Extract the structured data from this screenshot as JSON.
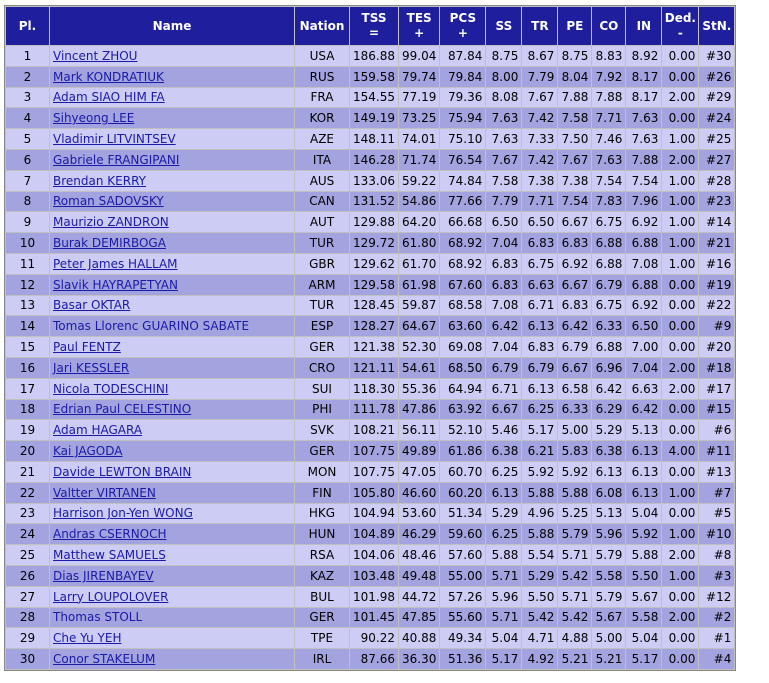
{
  "table": {
    "headers": {
      "pl": "Pl.",
      "name": "Name",
      "nation": "Nation",
      "tss": "TSS",
      "tss_sub": "=",
      "tes": "TES",
      "tes_sub": "+",
      "pcs": "PCS",
      "pcs_sub": "+",
      "ss": "SS",
      "tr": "TR",
      "pe": "PE",
      "co": "CO",
      "in": "IN",
      "ded": "Ded.",
      "ded_sub": "-",
      "stn": "StN."
    },
    "rows": [
      {
        "pl": "1",
        "name": "Vincent ZHOU",
        "nation": "USA",
        "tss": "186.88",
        "tes": "99.04",
        "pcs": "87.84",
        "ss": "8.75",
        "tr": "8.67",
        "pe": "8.75",
        "co": "8.83",
        "in": "8.92",
        "ded": "0.00",
        "stn": "#30"
      },
      {
        "pl": "2",
        "name": "Mark KONDRATIUK",
        "nation": "RUS",
        "tss": "159.58",
        "tes": "79.74",
        "pcs": "79.84",
        "ss": "8.00",
        "tr": "7.79",
        "pe": "8.04",
        "co": "7.92",
        "in": "8.17",
        "ded": "0.00",
        "stn": "#26"
      },
      {
        "pl": "3",
        "name": "Adam SIAO HIM FA",
        "nation": "FRA",
        "tss": "154.55",
        "tes": "77.19",
        "pcs": "79.36",
        "ss": "8.08",
        "tr": "7.67",
        "pe": "7.88",
        "co": "7.88",
        "in": "8.17",
        "ded": "2.00",
        "stn": "#29"
      },
      {
        "pl": "4",
        "name": "Sihyeong LEE",
        "nation": "KOR",
        "tss": "149.19",
        "tes": "73.25",
        "pcs": "75.94",
        "ss": "7.63",
        "tr": "7.42",
        "pe": "7.58",
        "co": "7.71",
        "in": "7.63",
        "ded": "0.00",
        "stn": "#24"
      },
      {
        "pl": "5",
        "name": "Vladimir LITVINTSEV",
        "nation": "AZE",
        "tss": "148.11",
        "tes": "74.01",
        "pcs": "75.10",
        "ss": "7.63",
        "tr": "7.33",
        "pe": "7.50",
        "co": "7.46",
        "in": "7.63",
        "ded": "1.00",
        "stn": "#25"
      },
      {
        "pl": "6",
        "name": "Gabriele FRANGIPANI",
        "nation": "ITA",
        "tss": "146.28",
        "tes": "71.74",
        "pcs": "76.54",
        "ss": "7.67",
        "tr": "7.42",
        "pe": "7.67",
        "co": "7.63",
        "in": "7.88",
        "ded": "2.00",
        "stn": "#27"
      },
      {
        "pl": "7",
        "name": "Brendan KERRY",
        "nation": "AUS",
        "tss": "133.06",
        "tes": "59.22",
        "pcs": "74.84",
        "ss": "7.58",
        "tr": "7.38",
        "pe": "7.38",
        "co": "7.54",
        "in": "7.54",
        "ded": "1.00",
        "stn": "#28"
      },
      {
        "pl": "8",
        "name": "Roman SADOVSKY",
        "nation": "CAN",
        "tss": "131.52",
        "tes": "54.86",
        "pcs": "77.66",
        "ss": "7.79",
        "tr": "7.71",
        "pe": "7.54",
        "co": "7.83",
        "in": "7.96",
        "ded": "1.00",
        "stn": "#23"
      },
      {
        "pl": "9",
        "name": "Maurizio ZANDRON",
        "nation": "AUT",
        "tss": "129.88",
        "tes": "64.20",
        "pcs": "66.68",
        "ss": "6.50",
        "tr": "6.50",
        "pe": "6.67",
        "co": "6.75",
        "in": "6.92",
        "ded": "1.00",
        "stn": "#14"
      },
      {
        "pl": "10",
        "name": "Burak DEMIRBOGA",
        "nation": "TUR",
        "tss": "129.72",
        "tes": "61.80",
        "pcs": "68.92",
        "ss": "7.04",
        "tr": "6.83",
        "pe": "6.83",
        "co": "6.88",
        "in": "6.88",
        "ded": "1.00",
        "stn": "#21"
      },
      {
        "pl": "11",
        "name": "Peter James HALLAM",
        "nation": "GBR",
        "tss": "129.62",
        "tes": "61.70",
        "pcs": "68.92",
        "ss": "6.83",
        "tr": "6.75",
        "pe": "6.92",
        "co": "6.88",
        "in": "7.08",
        "ded": "1.00",
        "stn": "#16"
      },
      {
        "pl": "12",
        "name": "Slavik HAYRAPETYAN",
        "nation": "ARM",
        "tss": "129.58",
        "tes": "61.98",
        "pcs": "67.60",
        "ss": "6.83",
        "tr": "6.63",
        "pe": "6.67",
        "co": "6.79",
        "in": "6.88",
        "ded": "0.00",
        "stn": "#19"
      },
      {
        "pl": "13",
        "name": "Basar OKTAR",
        "nation": "TUR",
        "tss": "128.45",
        "tes": "59.87",
        "pcs": "68.58",
        "ss": "7.08",
        "tr": "6.71",
        "pe": "6.83",
        "co": "6.75",
        "in": "6.92",
        "ded": "0.00",
        "stn": "#22"
      },
      {
        "pl": "14",
        "name": "Tomas Llorenc GUARINO SABATE",
        "nation": "ESP",
        "tss": "128.27",
        "tes": "64.67",
        "pcs": "63.60",
        "ss": "6.42",
        "tr": "6.13",
        "pe": "6.42",
        "co": "6.33",
        "in": "6.50",
        "ded": "0.00",
        "stn": "#9",
        "nolink": true
      },
      {
        "pl": "15",
        "name": "Paul FENTZ",
        "nation": "GER",
        "tss": "121.38",
        "tes": "52.30",
        "pcs": "69.08",
        "ss": "7.04",
        "tr": "6.83",
        "pe": "6.79",
        "co": "6.88",
        "in": "7.00",
        "ded": "0.00",
        "stn": "#20"
      },
      {
        "pl": "16",
        "name": "Jari KESSLER",
        "nation": "CRO",
        "tss": "121.11",
        "tes": "54.61",
        "pcs": "68.50",
        "ss": "6.79",
        "tr": "6.79",
        "pe": "6.67",
        "co": "6.96",
        "in": "7.04",
        "ded": "2.00",
        "stn": "#18"
      },
      {
        "pl": "17",
        "name": "Nicola TODESCHINI",
        "nation": "SUI",
        "tss": "118.30",
        "tes": "55.36",
        "pcs": "64.94",
        "ss": "6.71",
        "tr": "6.13",
        "pe": "6.58",
        "co": "6.42",
        "in": "6.63",
        "ded": "2.00",
        "stn": "#17"
      },
      {
        "pl": "18",
        "name": "Edrian Paul CELESTINO",
        "nation": "PHI",
        "tss": "111.78",
        "tes": "47.86",
        "pcs": "63.92",
        "ss": "6.67",
        "tr": "6.25",
        "pe": "6.33",
        "co": "6.29",
        "in": "6.42",
        "ded": "0.00",
        "stn": "#15"
      },
      {
        "pl": "19",
        "name": "Adam HAGARA",
        "nation": "SVK",
        "tss": "108.21",
        "tes": "56.11",
        "pcs": "52.10",
        "ss": "5.46",
        "tr": "5.17",
        "pe": "5.00",
        "co": "5.29",
        "in": "5.13",
        "ded": "0.00",
        "stn": "#6"
      },
      {
        "pl": "20",
        "name": "Kai JAGODA",
        "nation": "GER",
        "tss": "107.75",
        "tes": "49.89",
        "pcs": "61.86",
        "ss": "6.38",
        "tr": "6.21",
        "pe": "5.83",
        "co": "6.38",
        "in": "6.13",
        "ded": "4.00",
        "stn": "#11"
      },
      {
        "pl": "21",
        "name": "Davide LEWTON BRAIN",
        "nation": "MON",
        "tss": "107.75",
        "tes": "47.05",
        "pcs": "60.70",
        "ss": "6.25",
        "tr": "5.92",
        "pe": "5.92",
        "co": "6.13",
        "in": "6.13",
        "ded": "0.00",
        "stn": "#13"
      },
      {
        "pl": "22",
        "name": "Valtter VIRTANEN",
        "nation": "FIN",
        "tss": "105.80",
        "tes": "46.60",
        "pcs": "60.20",
        "ss": "6.13",
        "tr": "5.88",
        "pe": "5.88",
        "co": "6.08",
        "in": "6.13",
        "ded": "1.00",
        "stn": "#7"
      },
      {
        "pl": "23",
        "name": "Harrison Jon-Yen WONG",
        "nation": "HKG",
        "tss": "104.94",
        "tes": "53.60",
        "pcs": "51.34",
        "ss": "5.29",
        "tr": "4.96",
        "pe": "5.25",
        "co": "5.13",
        "in": "5.04",
        "ded": "0.00",
        "stn": "#5"
      },
      {
        "pl": "24",
        "name": "Andras CSERNOCH",
        "nation": "HUN",
        "tss": "104.89",
        "tes": "46.29",
        "pcs": "59.60",
        "ss": "6.25",
        "tr": "5.88",
        "pe": "5.79",
        "co": "5.96",
        "in": "5.92",
        "ded": "1.00",
        "stn": "#10"
      },
      {
        "pl": "25",
        "name": "Matthew SAMUELS",
        "nation": "RSA",
        "tss": "104.06",
        "tes": "48.46",
        "pcs": "57.60",
        "ss": "5.88",
        "tr": "5.54",
        "pe": "5.71",
        "co": "5.79",
        "in": "5.88",
        "ded": "2.00",
        "stn": "#8"
      },
      {
        "pl": "26",
        "name": "Dias JIRENBAYEV",
        "nation": "KAZ",
        "tss": "103.48",
        "tes": "49.48",
        "pcs": "55.00",
        "ss": "5.71",
        "tr": "5.29",
        "pe": "5.42",
        "co": "5.58",
        "in": "5.50",
        "ded": "1.00",
        "stn": "#3"
      },
      {
        "pl": "27",
        "name": "Larry LOUPOLOVER",
        "nation": "BUL",
        "tss": "101.98",
        "tes": "44.72",
        "pcs": "57.26",
        "ss": "5.96",
        "tr": "5.50",
        "pe": "5.71",
        "co": "5.79",
        "in": "5.67",
        "ded": "0.00",
        "stn": "#12"
      },
      {
        "pl": "28",
        "name": "Thomas STOLL",
        "nation": "GER",
        "tss": "101.45",
        "tes": "47.85",
        "pcs": "55.60",
        "ss": "5.71",
        "tr": "5.42",
        "pe": "5.42",
        "co": "5.67",
        "in": "5.58",
        "ded": "2.00",
        "stn": "#2",
        "nolink": true
      },
      {
        "pl": "29",
        "name": "Che Yu YEH",
        "nation": "TPE",
        "tss": "90.22",
        "tes": "40.88",
        "pcs": "49.34",
        "ss": "5.04",
        "tr": "4.71",
        "pe": "4.88",
        "co": "5.00",
        "in": "5.04",
        "ded": "0.00",
        "stn": "#1"
      },
      {
        "pl": "30",
        "name": "Conor STAKELUM",
        "nation": "IRL",
        "tss": "87.66",
        "tes": "36.30",
        "pcs": "51.36",
        "ss": "5.17",
        "tr": "4.92",
        "pe": "5.21",
        "co": "5.21",
        "in": "5.17",
        "ded": "0.00",
        "stn": "#4"
      }
    ]
  }
}
